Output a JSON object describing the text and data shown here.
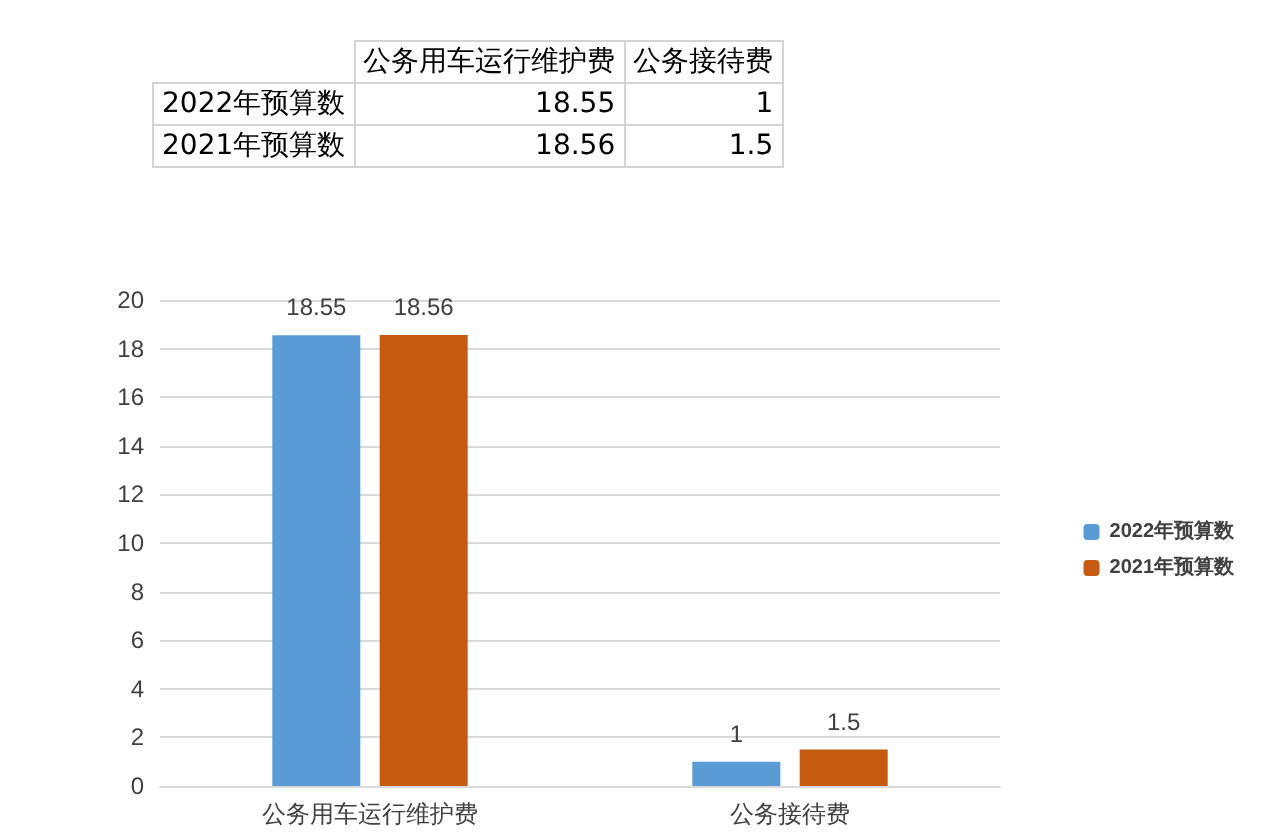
{
  "chart_data": [
    {
      "type": "other",
      "annotations": [
        "公务用车运行维护费",
        "公务接待费",
        "2022年预算数",
        "18.55",
        "1",
        "2021年预算数",
        "18.56",
        "1.5"
      ]
    },
    {
      "type": "bar",
      "categories": [
        "公务用车运行维护费",
        "公务接待费"
      ],
      "series": [
        {
          "name": "2022年预算数",
          "color": "#5b9bd5",
          "values": [
            18.55,
            1
          ]
        },
        {
          "name": "2021年预算数",
          "color": "#c55a11",
          "values": [
            18.56,
            1.5
          ]
        }
      ],
      "ylim": [
        0,
        20
      ],
      "yticks": [
        0,
        2,
        4,
        6,
        8,
        10,
        12,
        14,
        16,
        18,
        20
      ],
      "grid": "y",
      "legend": "right",
      "data_labels": true
    }
  ]
}
